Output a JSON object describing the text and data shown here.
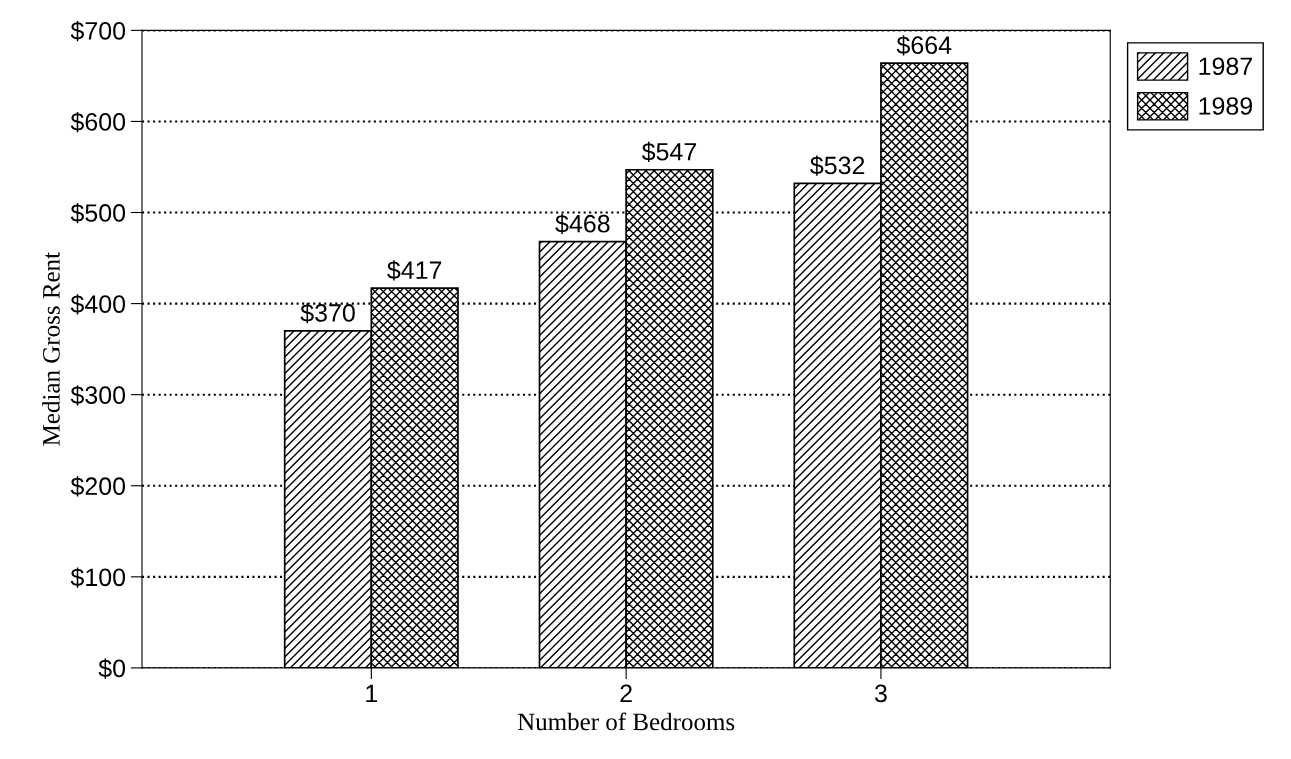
{
  "chart_data": {
    "type": "bar",
    "xlabel": "Number of Bedrooms",
    "ylabel": "Median Gross Rent",
    "categories": [
      "1",
      "2",
      "3"
    ],
    "series": [
      {
        "name": "1987",
        "color": "#000000",
        "values": [
          370,
          468,
          532
        ],
        "value_labels": [
          "$370",
          "$468",
          "$532"
        ]
      },
      {
        "name": "1989",
        "color": "#000000",
        "values": [
          417,
          547,
          664
        ],
        "value_labels": [
          "$417",
          "$547",
          "$664"
        ]
      }
    ],
    "ylim": [
      0,
      700
    ],
    "yticks": [
      {
        "value": 0,
        "label": "$0"
      },
      {
        "value": 100,
        "label": "$100"
      },
      {
        "value": 200,
        "label": "$200"
      },
      {
        "value": 300,
        "label": "$300"
      },
      {
        "value": 400,
        "label": "$400"
      },
      {
        "value": 500,
        "label": "$500"
      },
      {
        "value": 600,
        "label": "$600"
      },
      {
        "value": 700,
        "label": "$700"
      }
    ],
    "grid": "y",
    "legend": "top right"
  }
}
